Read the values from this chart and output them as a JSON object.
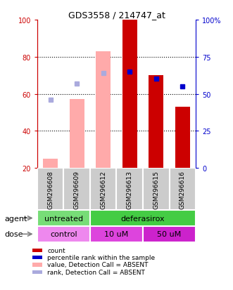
{
  "title": "GDS3558 / 214747_at",
  "samples": [
    "GSM296608",
    "GSM296609",
    "GSM296612",
    "GSM296613",
    "GSM296615",
    "GSM296616"
  ],
  "bar_values": [
    25,
    57,
    83,
    100,
    70,
    53
  ],
  "bar_colors_absent": "#ffaaaa",
  "bar_colors_present": "#cc0000",
  "bar_absent": [
    true,
    true,
    true,
    false,
    false,
    false
  ],
  "rank_values": [
    46,
    57,
    64,
    65,
    60,
    55
  ],
  "rank_absent": [
    true,
    true,
    true,
    false,
    false,
    false
  ],
  "rank_color_absent": "#aaaadd",
  "rank_color_present": "#0000cc",
  "ylim_left": [
    20,
    100
  ],
  "left_ticks": [
    20,
    40,
    60,
    80,
    100
  ],
  "right_ticks": [
    0,
    25,
    50,
    75,
    100
  ],
  "right_tick_labels": [
    "0",
    "25",
    "50",
    "75",
    "100%"
  ],
  "gridlines": [
    40,
    60,
    80
  ],
  "agent_groups": [
    {
      "label": "untreated",
      "cols": [
        0,
        1
      ],
      "color": "#77dd77"
    },
    {
      "label": "deferasirox",
      "cols": [
        2,
        3,
        4,
        5
      ],
      "color": "#44cc44"
    }
  ],
  "dose_groups": [
    {
      "label": "control",
      "cols": [
        0,
        1
      ],
      "color": "#ee88ee"
    },
    {
      "label": "10 uM",
      "cols": [
        2,
        3
      ],
      "color": "#dd44dd"
    },
    {
      "label": "50 uM",
      "cols": [
        4,
        5
      ],
      "color": "#cc22cc"
    }
  ],
  "legend_items": [
    {
      "color": "#cc0000",
      "label": "count"
    },
    {
      "color": "#0000cc",
      "label": "percentile rank within the sample"
    },
    {
      "color": "#ffaaaa",
      "label": "value, Detection Call = ABSENT"
    },
    {
      "color": "#aaaadd",
      "label": "rank, Detection Call = ABSENT"
    }
  ],
  "agent_label": "agent",
  "dose_label": "dose",
  "left_axis_color": "#cc0000",
  "right_axis_color": "#0000cc",
  "bar_width": 0.55,
  "sample_box_color": "#cccccc"
}
